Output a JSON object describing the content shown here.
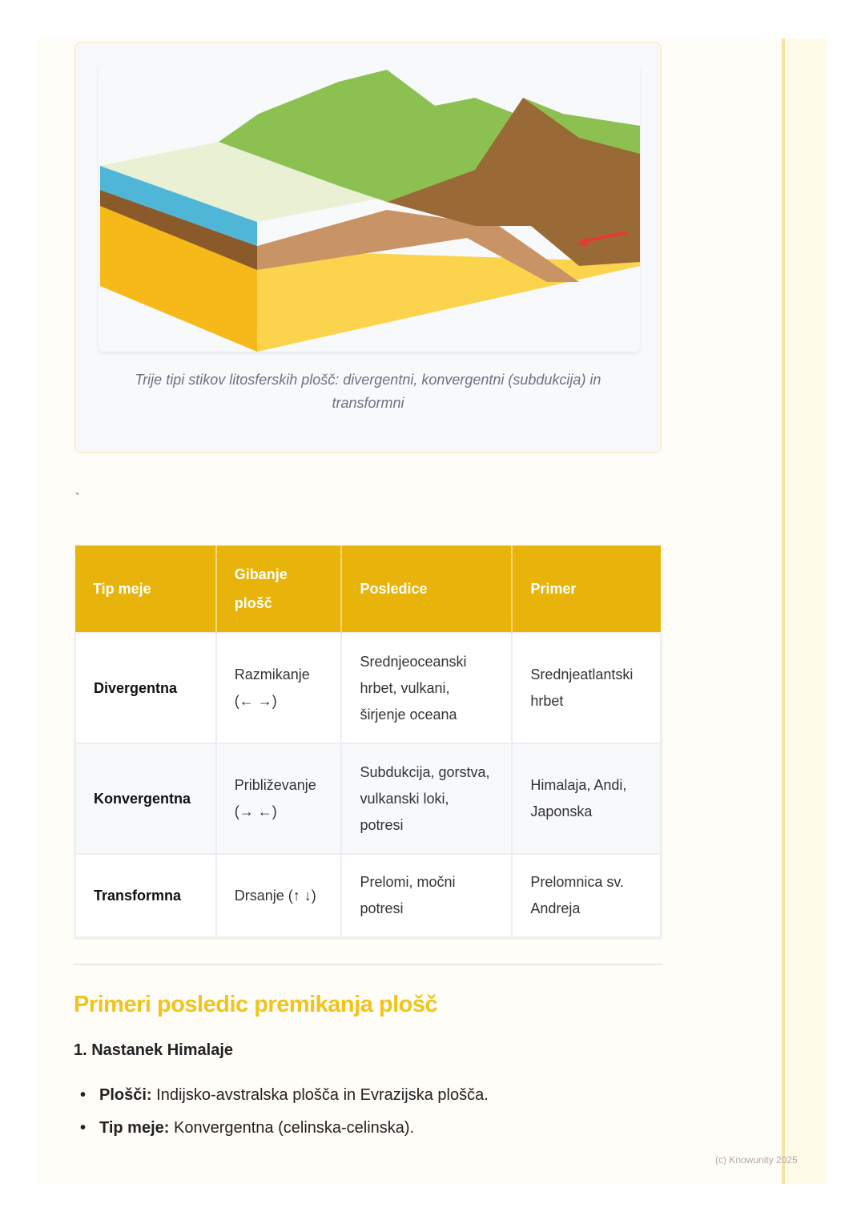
{
  "figure": {
    "caption": "Trije tipi stikov litosferskih plošč: divergentni, konvergentni (subdukcija) in transformni"
  },
  "stray_mark": "`",
  "table": {
    "headers": [
      "Tip meje",
      "Gibanje plošč",
      "Posledice",
      "Primer"
    ],
    "rows": [
      [
        "Divergentna",
        "Razmikanje (← →)",
        "Srednjeoceanski hrbet, vulkani, širjenje oceana",
        "Srednjeatlantski hrbet"
      ],
      [
        "Konvergentna",
        "Približevanje (→ ←)",
        "Subdukcija, gorstva, vulkanski loki, potresi",
        "Himalaja, Andi, Japonska"
      ],
      [
        "Transformna",
        "Drsanje (↑ ↓)",
        "Prelomi, močni potresi",
        "Prelomnica sv. Andreja"
      ]
    ]
  },
  "section": {
    "title": "Primeri posledic premikanja plošč",
    "subtitle": "1. Nastanek Himalaje",
    "bullets": [
      {
        "label": "Plošči:",
        "text": " Indijsko-avstralska plošča in Evrazijska plošča."
      },
      {
        "label": "Tip meje:",
        "text": " Konvergentna (celinska-celinska)."
      }
    ]
  },
  "footer": {
    "copyright": "(c) Knowunity 2025"
  },
  "colors": {
    "accent": "#e8b30a",
    "heading": "#f2c31a"
  }
}
